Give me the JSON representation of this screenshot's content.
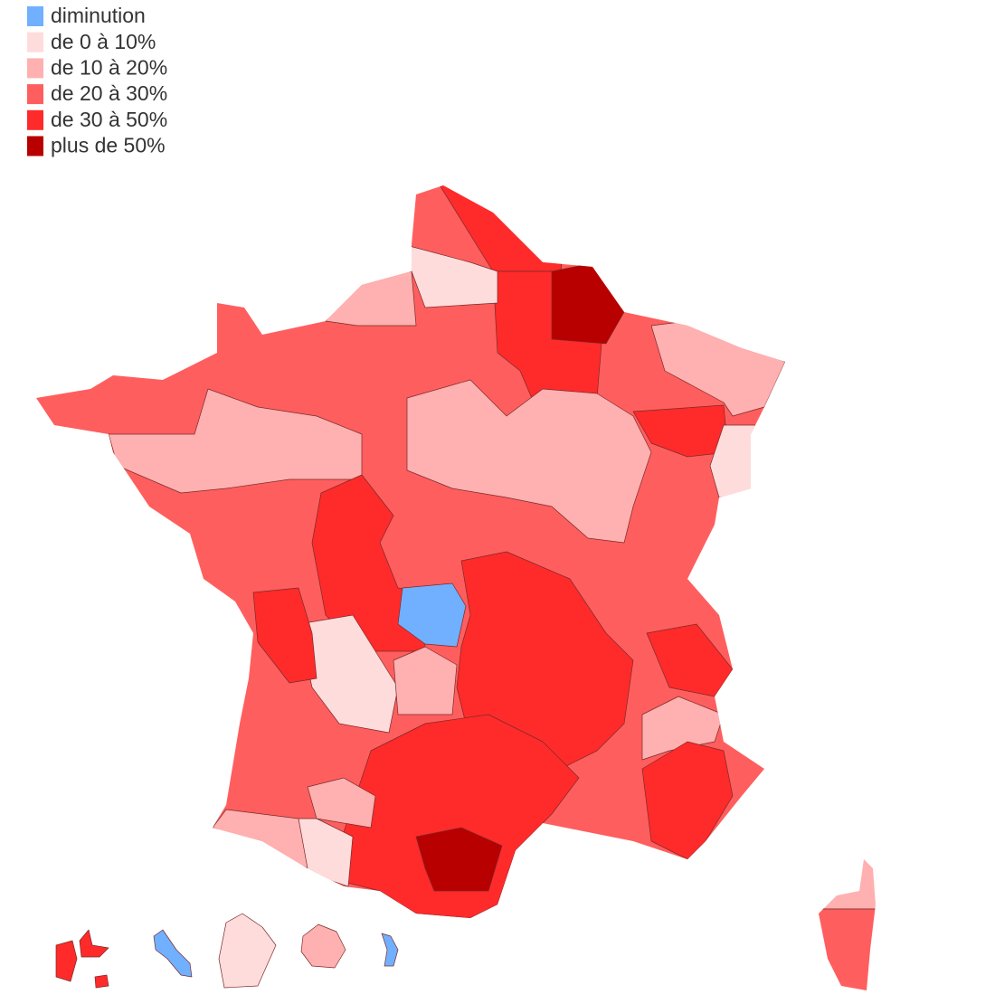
{
  "legend": {
    "items": [
      {
        "label": "diminution",
        "color": "#70b0ff"
      },
      {
        "label": "de 0 à 10%",
        "color": "#ffdcdc"
      },
      {
        "label": "de 10 à 20%",
        "color": "#ffb0b0"
      },
      {
        "label": "de 20 à 30%",
        "color": "#ff5e5e"
      },
      {
        "label": "de 30 à 50%",
        "color": "#ff2a2a"
      },
      {
        "label": "plus de 50%",
        "color": "#b80000"
      }
    ]
  }
}
